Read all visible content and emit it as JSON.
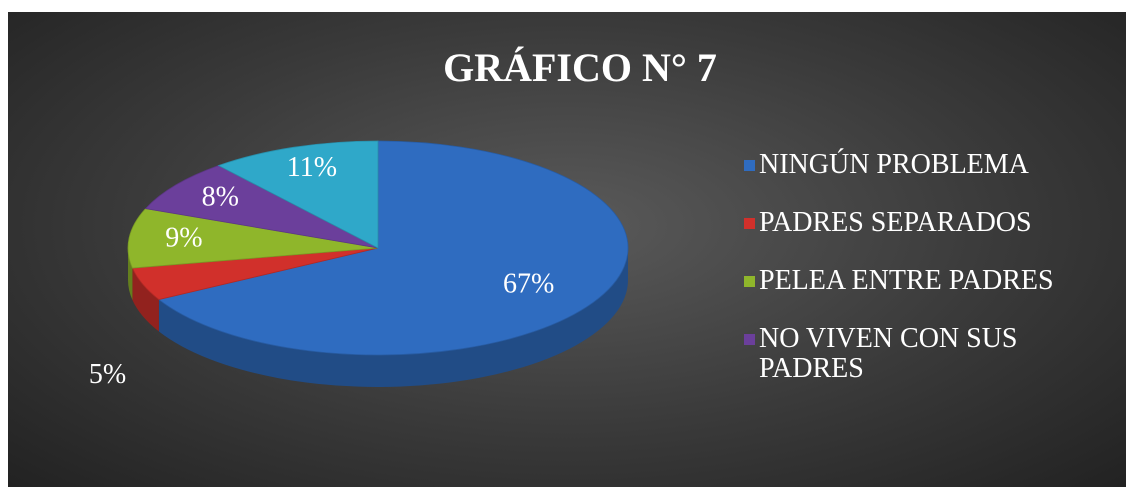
{
  "chart_data": {
    "type": "pie",
    "title": "GRÁFICO N° 7",
    "categories": [
      "NINGÚN PROBLEMA",
      "PADRES SEPARADOS",
      "PELEA ENTRE PADRES",
      "NO VIVEN CON SUS PADRES",
      null
    ],
    "values": [
      67,
      5,
      9,
      8,
      11
    ],
    "value_labels": [
      "67%",
      "5%",
      "9%",
      "8%",
      "11%"
    ],
    "colors": [
      "#2f6cc0",
      "#d1302b",
      "#8fb62b",
      "#6b3f9b",
      "#2fa8c9"
    ],
    "legend": "right"
  }
}
